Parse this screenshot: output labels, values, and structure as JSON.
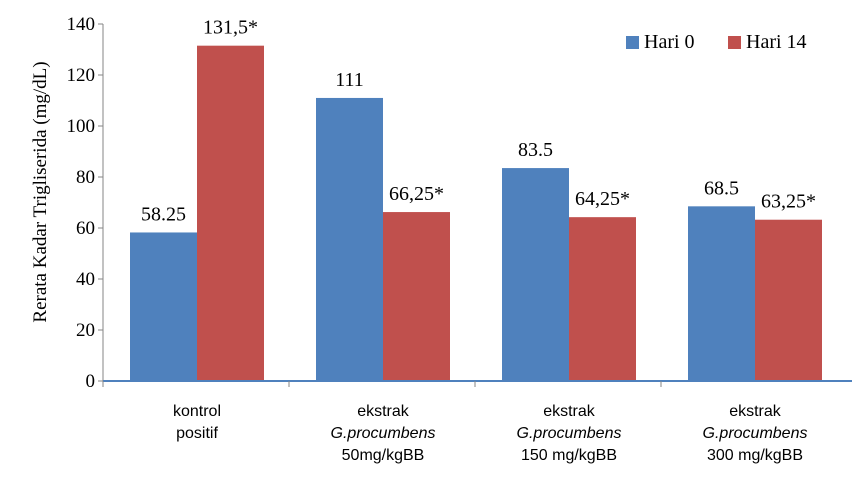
{
  "chart_data": {
    "type": "bar",
    "ylabel": "Rerata Kadar Trigliserida (mg/dL)",
    "ylim": [
      0,
      140
    ],
    "yticks": [
      0,
      20,
      40,
      60,
      80,
      100,
      120,
      140
    ],
    "grid": false,
    "legend_position": "top-right",
    "categories": [
      {
        "lines": [
          "kontrol",
          "positif"
        ],
        "italic": [
          false,
          false
        ]
      },
      {
        "lines": [
          "ekstrak",
          "G.procumbens",
          "50mg/kgBB"
        ],
        "italic": [
          false,
          true,
          false
        ]
      },
      {
        "lines": [
          "ekstrak",
          "G.procumbens",
          "150 mg/kgBB"
        ],
        "italic": [
          false,
          true,
          false
        ]
      },
      {
        "lines": [
          "ekstrak",
          "G.procumbens",
          "300 mg/kgBB"
        ],
        "italic": [
          false,
          true,
          false
        ]
      }
    ],
    "series": [
      {
        "name": "Hari 0",
        "color": "#4f81bd",
        "values": [
          58.25,
          111,
          83.5,
          68.5
        ],
        "labels": [
          "58.25",
          "111",
          "83.5",
          "68.5"
        ]
      },
      {
        "name": "Hari 14",
        "color": "#c0504d",
        "values": [
          131.5,
          66.25,
          64.25,
          63.25
        ],
        "labels": [
          "131,5*",
          "66,25*",
          "64,25*",
          "63,25*"
        ]
      }
    ]
  }
}
